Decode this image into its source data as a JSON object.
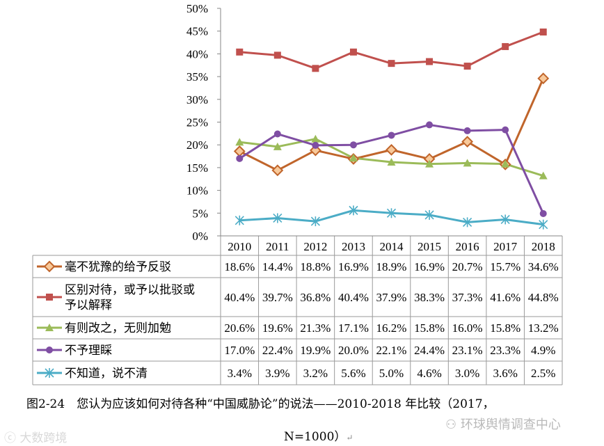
{
  "chart_data": {
    "type": "line",
    "categories": [
      "2010",
      "2011",
      "2012",
      "2013",
      "2014",
      "2015",
      "2016",
      "2017",
      "2018"
    ],
    "ylim": [
      0,
      50
    ],
    "yticks": [
      "0%",
      "5%",
      "10%",
      "15%",
      "20%",
      "25%",
      "30%",
      "35%",
      "40%",
      "45%",
      "50%"
    ],
    "series": [
      {
        "name": "毫不犹豫的给予反驳",
        "name_lines": [
          "毫不犹豫的给予反驳"
        ],
        "color": "#c0652b",
        "marker": "diamond",
        "values": [
          18.6,
          14.4,
          18.8,
          16.9,
          18.9,
          16.9,
          20.7,
          15.7,
          34.6
        ],
        "labels": [
          "18.6%",
          "14.4%",
          "18.8%",
          "16.9%",
          "18.9%",
          "16.9%",
          "20.7%",
          "15.7%",
          "34.6%"
        ]
      },
      {
        "name": "区别对待，或予以批驳或予以解释",
        "name_lines": [
          "区别对待，或予以批驳或",
          "予以解释"
        ],
        "color": "#c0504d",
        "marker": "square",
        "values": [
          40.4,
          39.7,
          36.8,
          40.4,
          37.9,
          38.3,
          37.3,
          41.6,
          44.8
        ],
        "labels": [
          "40.4%",
          "39.7%",
          "36.8%",
          "40.4%",
          "37.9%",
          "38.3%",
          "37.3%",
          "41.6%",
          "44.8%"
        ]
      },
      {
        "name": "有则改之，无则加勉",
        "name_lines": [
          "有则改之，无则加勉"
        ],
        "color": "#9bbb59",
        "marker": "triangle",
        "values": [
          20.6,
          19.6,
          21.3,
          17.1,
          16.2,
          15.8,
          16.0,
          15.8,
          13.2
        ],
        "labels": [
          "20.6%",
          "19.6%",
          "21.3%",
          "17.1%",
          "16.2%",
          "15.8%",
          "16.0%",
          "15.8%",
          "13.2%"
        ]
      },
      {
        "name": "不予理睬",
        "name_lines": [
          "不予理睬"
        ],
        "color": "#7f4ea3",
        "marker": "circle",
        "values": [
          17.0,
          22.4,
          19.9,
          20.0,
          22.1,
          24.4,
          23.1,
          23.3,
          4.9
        ],
        "labels": [
          "17.0%",
          "22.4%",
          "19.9%",
          "20.0%",
          "22.1%",
          "24.4%",
          "23.1%",
          "23.3%",
          "4.9%"
        ]
      },
      {
        "name": "不知道，说不清",
        "name_lines": [
          "不知道，说不清"
        ],
        "color": "#4bacc6",
        "marker": "star",
        "values": [
          3.4,
          3.9,
          3.2,
          5.6,
          5.0,
          4.6,
          3.0,
          3.6,
          2.5
        ],
        "labels": [
          "3.4%",
          "3.9%",
          "3.2%",
          "5.6%",
          "5.0%",
          "4.6%",
          "3.0%",
          "3.6%",
          "2.5%"
        ]
      }
    ]
  },
  "caption": {
    "line1": "图2-24　您认为应该如何对待各种“中国威胁论”的说法——2010-2018 年比较（2017，",
    "line2": "N=1000）"
  },
  "watermarks": {
    "left": "大数跨境",
    "right": "环球舆情调查中心"
  }
}
